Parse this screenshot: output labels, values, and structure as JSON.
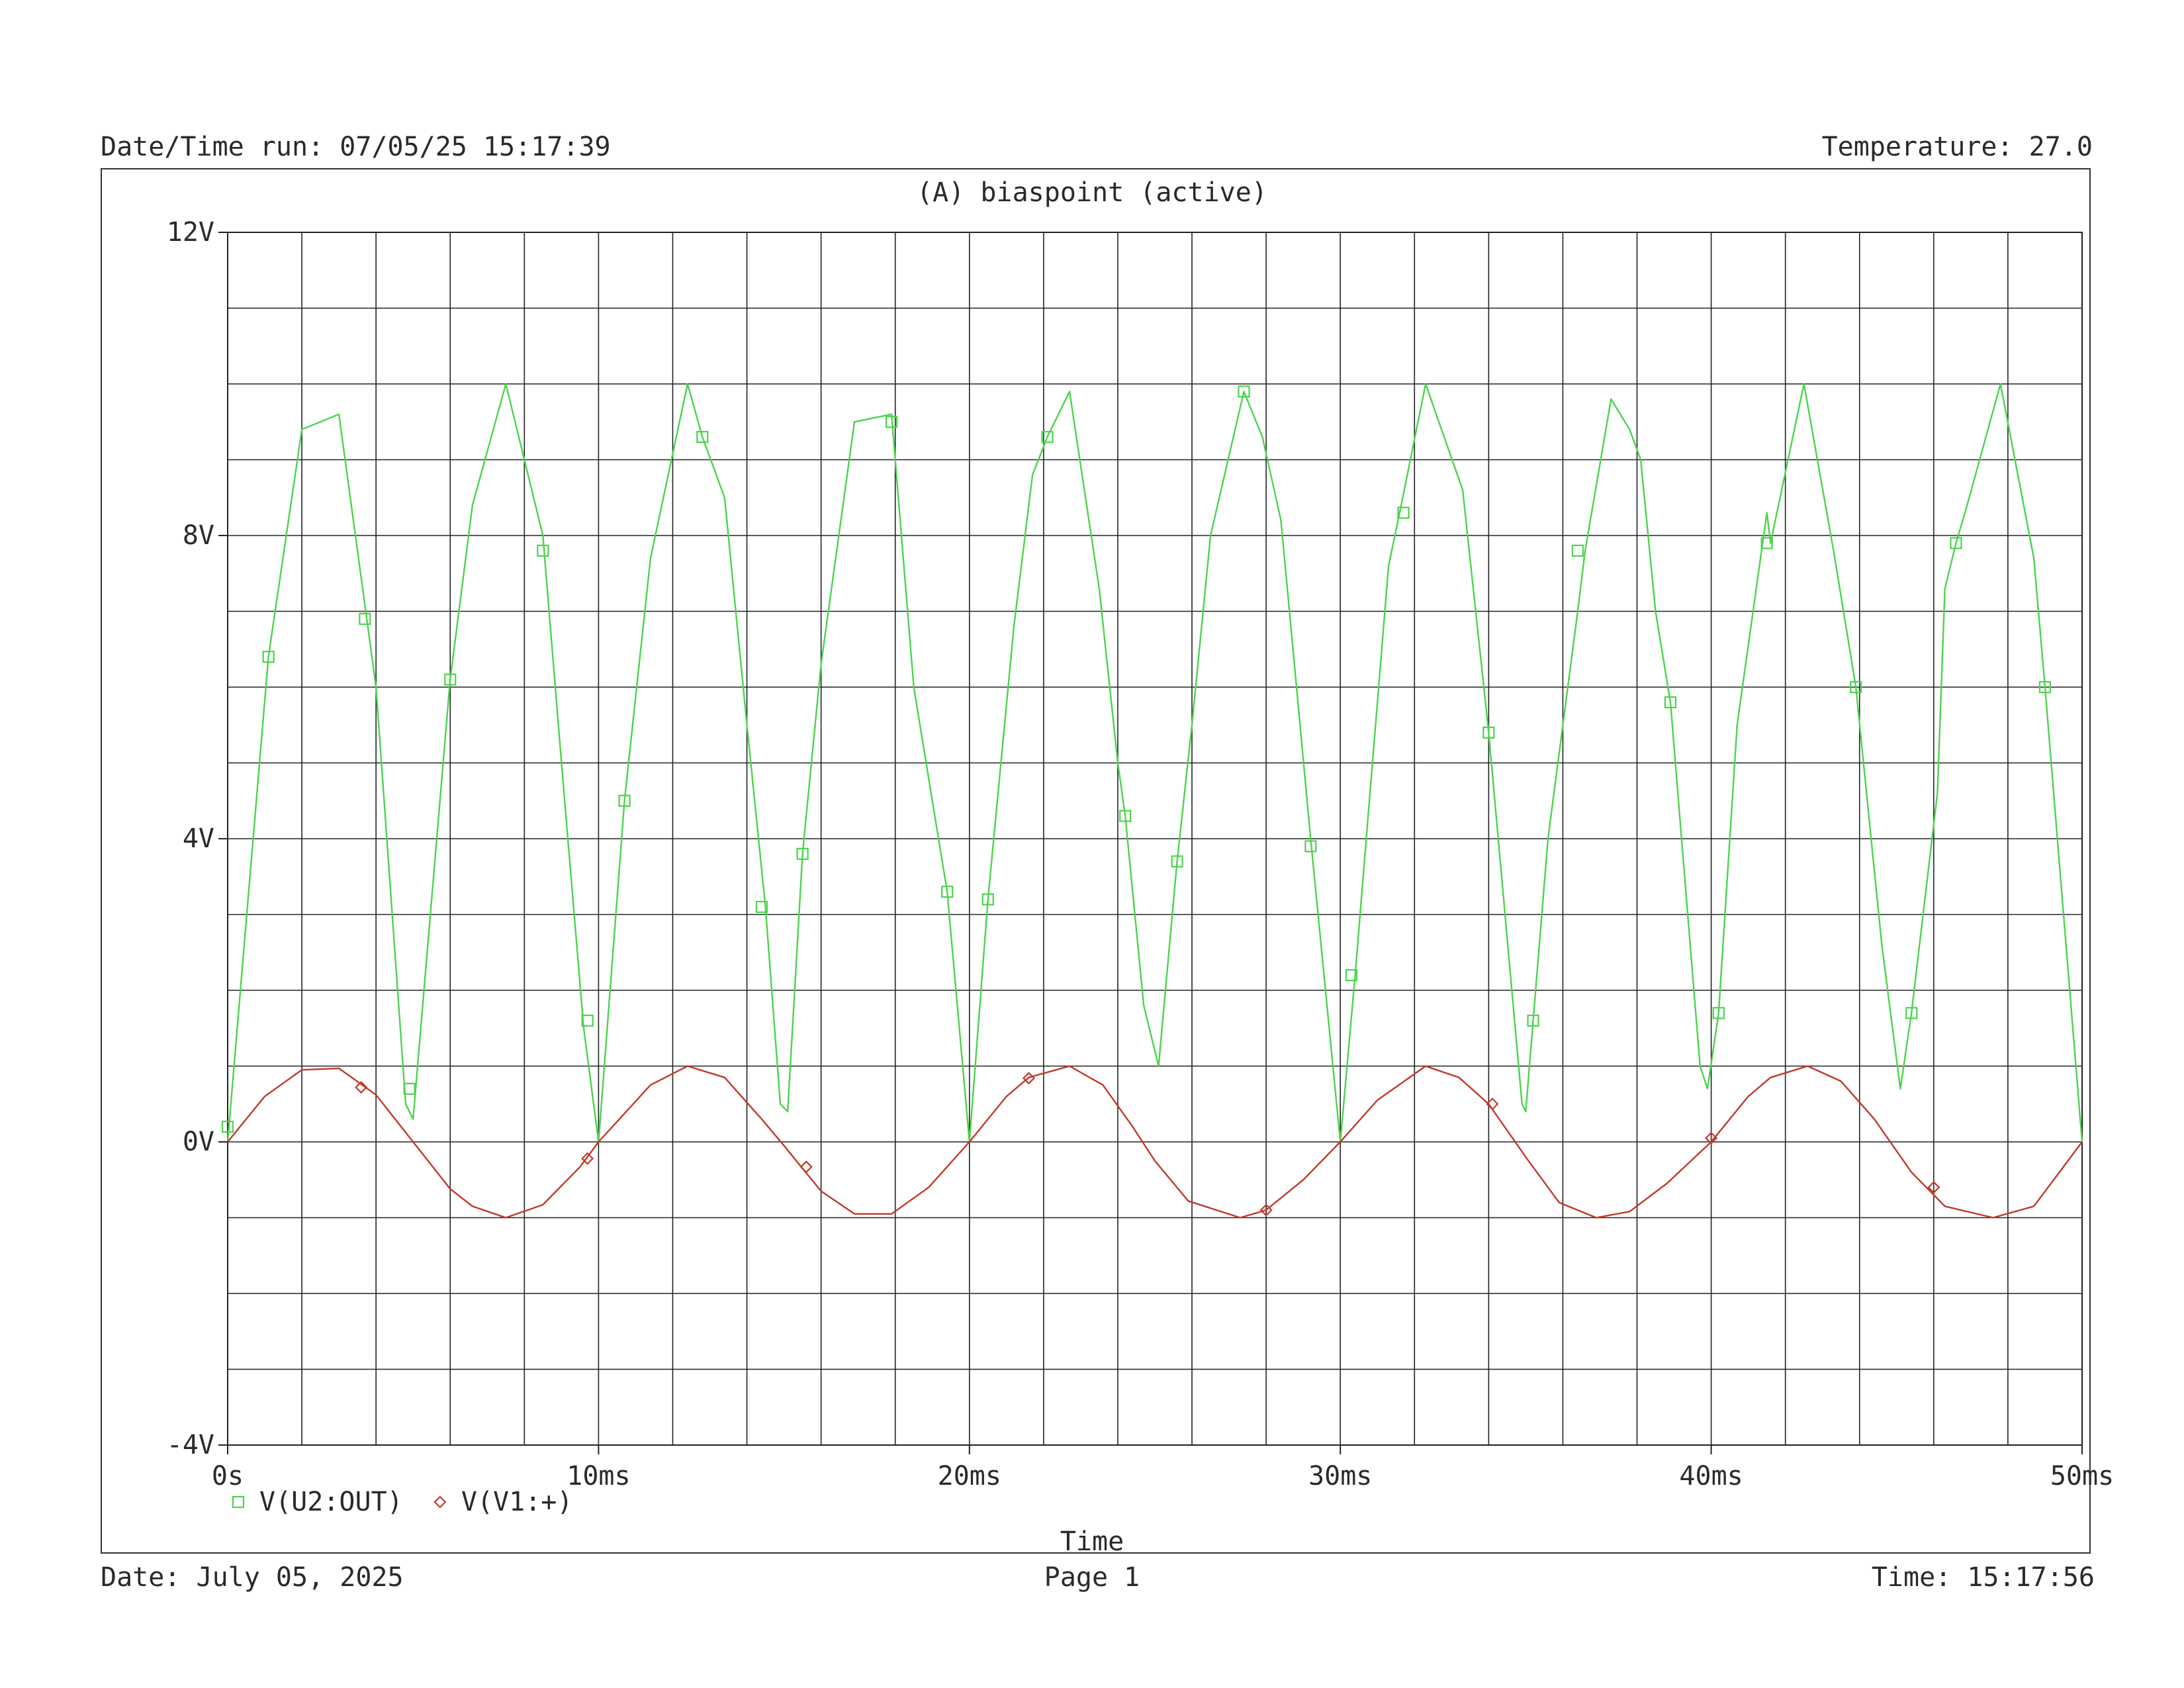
{
  "header": {
    "datetime_run": "Date/Time run: 07/05/25 15:17:39",
    "temperature": "Temperature: 27.0"
  },
  "footer": {
    "date": "Date: July 05, 2025",
    "page": "Page 1",
    "time": "Time: 15:17:56"
  },
  "colors": {
    "series_out": "#4cd44c",
    "series_in": "#c0392b",
    "grid": "#222222"
  },
  "chart_data": {
    "type": "line",
    "title": "(A) biaspoint (active)",
    "xlabel": "Time",
    "ylabel": "",
    "xlim": [
      0,
      50
    ],
    "ylim": [
      -4,
      12
    ],
    "x_unit": "ms",
    "x_ticks": [
      0,
      10,
      20,
      30,
      40,
      50
    ],
    "x_tick_labels": [
      "0s",
      "10ms",
      "20ms",
      "30ms",
      "40ms",
      "50ms"
    ],
    "y_ticks": [
      -4,
      0,
      4,
      8,
      12
    ],
    "y_tick_labels": [
      "-4V",
      "0V",
      "4V",
      "8V",
      "12V"
    ],
    "x_minor_gridlines": 25,
    "y_minor_gridlines": 16,
    "grid": true,
    "legend_position": "bottom-left",
    "series": [
      {
        "name": "V(U2:OUT)",
        "marker": "square",
        "color": "#4cd44c",
        "points": [
          [
            0,
            0.0
          ],
          [
            1.1,
            6.4
          ],
          [
            2.0,
            9.4
          ],
          [
            3.0,
            9.6
          ],
          [
            4.0,
            6.0
          ],
          [
            4.8,
            0.5
          ],
          [
            5.0,
            0.3
          ],
          [
            6.0,
            6.1
          ],
          [
            6.6,
            8.4
          ],
          [
            7.5,
            10.0
          ],
          [
            8.5,
            8.0
          ],
          [
            9.0,
            5.0
          ],
          [
            9.6,
            1.5
          ],
          [
            10.0,
            0.0
          ],
          [
            10.7,
            4.5
          ],
          [
            11.4,
            7.7
          ],
          [
            12.4,
            10.0
          ],
          [
            12.8,
            9.3
          ],
          [
            13.4,
            8.5
          ],
          [
            14.0,
            5.5
          ],
          [
            14.5,
            3.1
          ],
          [
            14.9,
            0.5
          ],
          [
            15.1,
            0.4
          ],
          [
            15.5,
            3.8
          ],
          [
            16.0,
            6.3
          ],
          [
            16.9,
            9.5
          ],
          [
            17.9,
            9.6
          ],
          [
            18.5,
            6.0
          ],
          [
            19.4,
            3.3
          ],
          [
            20.0,
            0.0
          ],
          [
            20.5,
            3.2
          ],
          [
            21.2,
            6.8
          ],
          [
            21.7,
            8.8
          ],
          [
            22.1,
            9.3
          ],
          [
            22.7,
            9.9
          ],
          [
            23.5,
            7.3
          ],
          [
            24.0,
            5.0
          ],
          [
            24.2,
            4.3
          ],
          [
            24.7,
            1.8
          ],
          [
            25.1,
            1.0
          ],
          [
            25.6,
            3.7
          ],
          [
            26.0,
            5.5
          ],
          [
            26.5,
            8.0
          ],
          [
            27.4,
            9.9
          ],
          [
            27.9,
            9.3
          ],
          [
            28.4,
            8.2
          ],
          [
            29.2,
            4.0
          ],
          [
            29.6,
            2.0
          ],
          [
            30.0,
            0.0
          ],
          [
            30.4,
            2.2
          ],
          [
            31.3,
            7.6
          ],
          [
            31.6,
            8.3
          ],
          [
            32.3,
            10.0
          ],
          [
            33.3,
            8.6
          ],
          [
            34.0,
            5.4
          ],
          [
            34.9,
            0.5
          ],
          [
            35.0,
            0.4
          ],
          [
            35.2,
            1.6
          ],
          [
            35.6,
            4.0
          ],
          [
            36.4,
            7.0
          ],
          [
            36.6,
            7.8
          ],
          [
            37.3,
            9.8
          ],
          [
            37.8,
            9.4
          ],
          [
            38.1,
            9.0
          ],
          [
            38.5,
            7.0
          ],
          [
            38.9,
            5.8
          ],
          [
            39.7,
            1.0
          ],
          [
            39.9,
            0.7
          ],
          [
            40.2,
            1.7
          ],
          [
            40.7,
            5.5
          ],
          [
            41.5,
            8.3
          ],
          [
            41.6,
            7.9
          ],
          [
            42.5,
            10.0
          ],
          [
            43.3,
            7.8
          ],
          [
            43.9,
            6.0
          ],
          [
            44.6,
            2.6
          ],
          [
            45.1,
            0.7
          ],
          [
            45.4,
            1.7
          ],
          [
            46.1,
            4.6
          ],
          [
            46.3,
            7.3
          ],
          [
            46.6,
            7.9
          ],
          [
            46.9,
            8.4
          ],
          [
            47.8,
            10.0
          ],
          [
            48.7,
            7.7
          ],
          [
            49.0,
            6.0
          ],
          [
            50.0,
            0.0
          ]
        ],
        "marker_points": [
          [
            0,
            0.2
          ],
          [
            1.1,
            6.4
          ],
          [
            3.7,
            6.9
          ],
          [
            4.9,
            0.7
          ],
          [
            6.0,
            6.1
          ],
          [
            8.5,
            7.8
          ],
          [
            9.7,
            1.6
          ],
          [
            10.7,
            4.5
          ],
          [
            12.8,
            9.3
          ],
          [
            14.4,
            3.1
          ],
          [
            15.5,
            3.8
          ],
          [
            17.9,
            9.5
          ],
          [
            19.4,
            3.3
          ],
          [
            20.5,
            3.2
          ],
          [
            22.1,
            9.3
          ],
          [
            24.2,
            4.3
          ],
          [
            25.6,
            3.7
          ],
          [
            27.4,
            9.9
          ],
          [
            29.2,
            3.9
          ],
          [
            30.3,
            2.2
          ],
          [
            31.7,
            8.3
          ],
          [
            34.0,
            5.4
          ],
          [
            35.2,
            1.6
          ],
          [
            36.4,
            7.8
          ],
          [
            38.9,
            5.8
          ],
          [
            40.2,
            1.7
          ],
          [
            41.5,
            7.9
          ],
          [
            43.9,
            6.0
          ],
          [
            45.4,
            1.7
          ],
          [
            46.6,
            7.9
          ],
          [
            49.0,
            6.0
          ]
        ]
      },
      {
        "name": "V(V1:+)",
        "marker": "diamond",
        "color": "#c0392b",
        "points": [
          [
            0,
            0.0
          ],
          [
            1.0,
            0.6
          ],
          [
            2.0,
            0.95
          ],
          [
            3.0,
            0.97
          ],
          [
            4.0,
            0.62
          ],
          [
            5.0,
            0.0
          ],
          [
            6.0,
            -0.62
          ],
          [
            6.6,
            -0.85
          ],
          [
            7.5,
            -1.0
          ],
          [
            8.5,
            -0.83
          ],
          [
            9.5,
            -0.33
          ],
          [
            10.0,
            0.0
          ],
          [
            11.4,
            0.75
          ],
          [
            12.4,
            1.0
          ],
          [
            13.4,
            0.85
          ],
          [
            14.4,
            0.3
          ],
          [
            15.0,
            -0.05
          ],
          [
            15.5,
            -0.35
          ],
          [
            16.0,
            -0.65
          ],
          [
            16.9,
            -0.95
          ],
          [
            17.9,
            -0.95
          ],
          [
            18.9,
            -0.6
          ],
          [
            20.0,
            0.0
          ],
          [
            21.0,
            0.6
          ],
          [
            21.6,
            0.85
          ],
          [
            22.7,
            1.0
          ],
          [
            23.6,
            0.75
          ],
          [
            24.4,
            0.2
          ],
          [
            25.0,
            -0.25
          ],
          [
            25.9,
            -0.78
          ],
          [
            27.3,
            -1.0
          ],
          [
            28.0,
            -0.9
          ],
          [
            29.0,
            -0.5
          ],
          [
            30.0,
            0.0
          ],
          [
            31.0,
            0.55
          ],
          [
            32.3,
            1.0
          ],
          [
            33.2,
            0.85
          ],
          [
            34.0,
            0.5
          ],
          [
            35.0,
            -0.2
          ],
          [
            35.9,
            -0.8
          ],
          [
            36.9,
            -1.0
          ],
          [
            37.8,
            -0.92
          ],
          [
            38.8,
            -0.55
          ],
          [
            40.0,
            0.0
          ],
          [
            41.0,
            0.6
          ],
          [
            41.6,
            0.85
          ],
          [
            42.6,
            1.0
          ],
          [
            43.5,
            0.8
          ],
          [
            44.4,
            0.3
          ],
          [
            45.4,
            -0.4
          ],
          [
            46.3,
            -0.85
          ],
          [
            47.6,
            -1.0
          ],
          [
            48.7,
            -0.85
          ],
          [
            50.0,
            0.0
          ]
        ],
        "marker_points": [
          [
            3.6,
            0.72
          ],
          [
            9.7,
            -0.22
          ],
          [
            15.6,
            -0.33
          ],
          [
            21.6,
            0.84
          ],
          [
            28.0,
            -0.9
          ],
          [
            34.1,
            0.5
          ],
          [
            40.0,
            0.05
          ],
          [
            46.0,
            -0.6
          ]
        ]
      }
    ]
  }
}
